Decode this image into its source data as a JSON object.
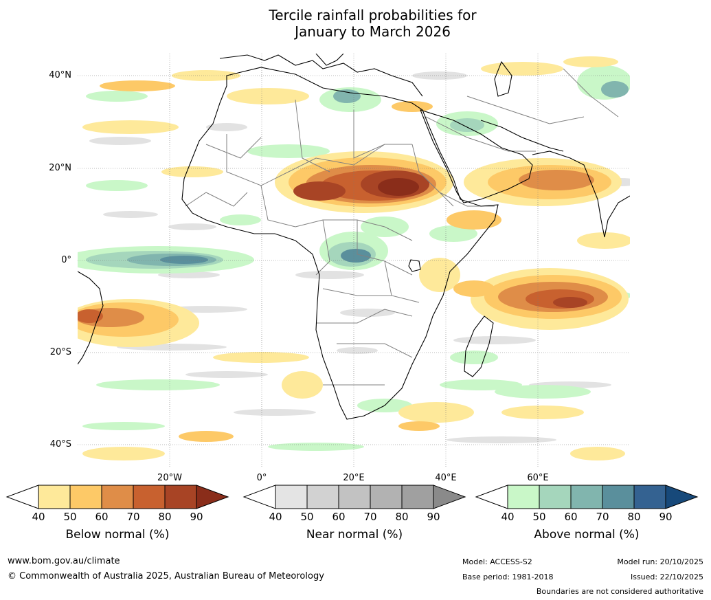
{
  "title": {
    "line1": "Tercile rainfall probabilities for",
    "line2": "January to March 2026"
  },
  "map": {
    "lat_labels": [
      "40°N",
      "20°N",
      "0°",
      "20°S",
      "40°S"
    ],
    "lon_labels": [
      "20°W",
      "0°",
      "20°E",
      "40°E",
      "60°E"
    ],
    "features": [
      "coastlines",
      "country-boundaries",
      "graticule"
    ]
  },
  "colorbars": [
    {
      "label": "Below normal (%)",
      "ticks": [
        "40",
        "50",
        "60",
        "70",
        "80",
        "90"
      ],
      "colors": [
        "#ffffff",
        "#fee99a",
        "#fdc967",
        "#df8d48",
        "#c8612f",
        "#a84425",
        "#8a2d1a"
      ]
    },
    {
      "label": "Near normal (%)",
      "ticks": [
        "40",
        "50",
        "60",
        "70",
        "80",
        "90"
      ],
      "colors": [
        "#ffffff",
        "#e4e4e4",
        "#d2d2d2",
        "#c2c2c2",
        "#b2b2b2",
        "#a0a0a0",
        "#8a8a8a"
      ]
    },
    {
      "label": "Above normal (%)",
      "ticks": [
        "40",
        "50",
        "60",
        "70",
        "80",
        "90"
      ],
      "colors": [
        "#ffffff",
        "#c9f7c8",
        "#a5d6bc",
        "#81b5ae",
        "#5a8f9c",
        "#346291",
        "#17497a"
      ]
    }
  ],
  "footer": {
    "website": "www.bom.gov.au/climate",
    "copyright": "© Commonwealth of Australia 2025, Australian Bureau of Meteorology",
    "model": "Model: ACCESS-S2",
    "base_period": "Base period: 1981-2018",
    "model_run": "Model run: 20/10/2025",
    "issued": "Issued: 22/10/2025",
    "disclaimer": "Boundaries are not considered authoritative"
  }
}
